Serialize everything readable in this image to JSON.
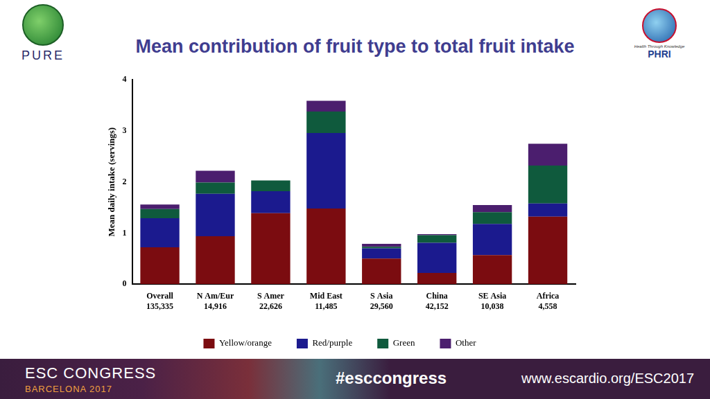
{
  "chart_data": {
    "type": "bar",
    "title": "Mean contribution of fruit type to total fruit intake",
    "y_label": "Mean daily intake (servings)",
    "categories": [
      [
        "Overall",
        "135,335"
      ],
      [
        "N Am/Eur",
        "14,916"
      ],
      [
        "S Amer",
        "22,626"
      ],
      [
        "Mid East",
        "11,485"
      ],
      [
        "S Asia",
        "29,560"
      ],
      [
        "China",
        "42,152"
      ],
      [
        "SE Asia",
        "10,038"
      ],
      [
        "Africa",
        "4,558"
      ]
    ],
    "series": [
      {
        "name": "Yellow/orange",
        "color": "#7b0c10",
        "values": [
          0.72,
          0.94,
          1.39,
          1.48,
          0.5,
          0.22,
          0.57,
          1.32
        ]
      },
      {
        "name": "Red/purple",
        "color": "#1b1a8e",
        "values": [
          0.57,
          0.83,
          0.43,
          1.48,
          0.2,
          0.59,
          0.61,
          0.26
        ]
      },
      {
        "name": "Green",
        "color": "#0f5a3d",
        "values": [
          0.18,
          0.22,
          0.21,
          0.42,
          0.03,
          0.15,
          0.23,
          0.74
        ]
      },
      {
        "name": "Other",
        "color": "#4b1e6e",
        "values": [
          0.09,
          0.23,
          0,
          0.21,
          0.06,
          0.02,
          0.14,
          0.43
        ]
      }
    ],
    "ylim": [
      0,
      4
    ],
    "yticks": [
      0,
      1,
      2,
      3,
      4
    ],
    "stacked": true,
    "grid": false,
    "legend": "bottom"
  },
  "logos": {
    "left": "PURE",
    "right": "PHRI",
    "right_motto": "Health Through Knowledge"
  },
  "footer": {
    "congress": "ESC CONGRESS",
    "city": "BARCELONA 2017",
    "hashtag": "#esccongress",
    "url": "www.escardio.org/ESC2017"
  }
}
